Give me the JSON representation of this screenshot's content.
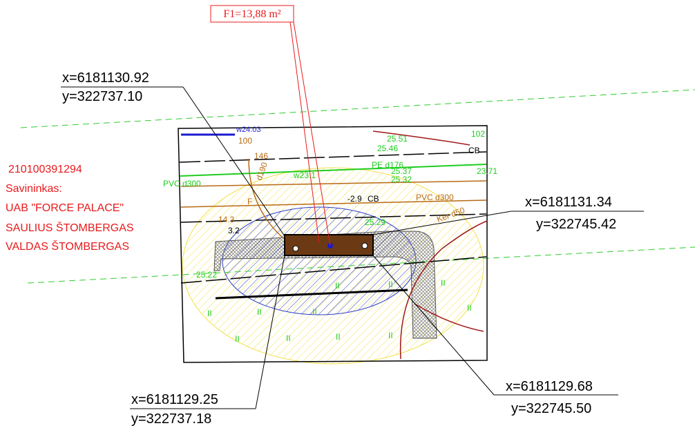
{
  "callout": {
    "label": "F1=13,88 m²"
  },
  "points": [
    {
      "x": "x=6181130.92",
      "y": "y=322737.10"
    },
    {
      "x": "x=6181131.34",
      "y": "y=322745.42"
    },
    {
      "x": "x=6181129.25",
      "y": "y=322737.18"
    },
    {
      "x": "x=6181129.68",
      "y": "y=322745.50"
    }
  ],
  "owner": {
    "id": "210100391294",
    "title": "Savininkas:",
    "lines": [
      "UAB \"FORCE PALACE\"",
      "SAULIUS ŠTOMBERGAS",
      "VALDAS ŠTOMBERGAS"
    ]
  },
  "map_labels": {
    "w1": "w24.03",
    "n100": "100",
    "n146": "146",
    "n102": "102",
    "cb1": "CB",
    "e1": "25.51",
    "e2": "25.46",
    "pe": "PE d176",
    "e3": "25.37",
    "e4": "25.32",
    "e5": "23.71",
    "pvc1": "PVC d300",
    "w2": "w23.1",
    "d190": "d190",
    "f": "F",
    "e6": "14.3",
    "e7": "3.2",
    "e8": "-2.9",
    "cb2": "CB",
    "pvc2": "PVC d300",
    "ker": "Ker d50",
    "e9": "25.29",
    "e10": "25.22",
    "ii": "II"
  }
}
